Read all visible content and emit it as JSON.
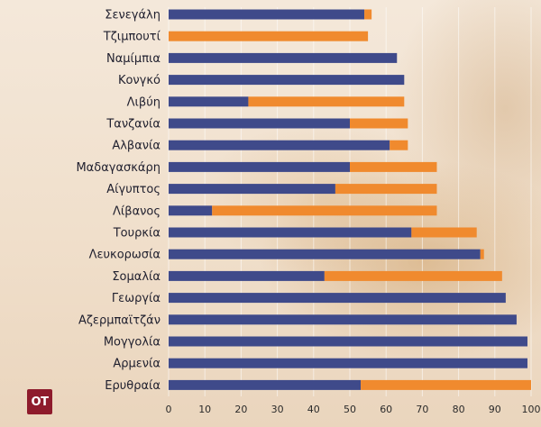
{
  "chart_data": {
    "type": "bar",
    "orientation": "horizontal",
    "stacked": true,
    "categories": [
      "Σενεγάλη",
      "Τζιμπουτί",
      "Ναμίμπια",
      "Κονγκό",
      "Λιβύη",
      "Τανζανία",
      "Αλβανία",
      "Μαδαγασκάρη",
      "Αίγυπτος",
      "Λίβανος",
      "Τουρκία",
      "Λευκορωσία",
      "Σομαλία",
      "Γεωργία",
      "Αζερμπαϊτζάν",
      "Μογγολία",
      "Αρμενία",
      "Ερυθραία"
    ],
    "series": [
      {
        "color": "#3f4a8a",
        "values": [
          54,
          0,
          63,
          65,
          22,
          50,
          61,
          50,
          46,
          12,
          67,
          86,
          43,
          93,
          96,
          99,
          99,
          53
        ]
      },
      {
        "color": "#f08a2e",
        "values": [
          2,
          55,
          0,
          0,
          43,
          16,
          5,
          24,
          28,
          62,
          18,
          1,
          49,
          0,
          0,
          0,
          0,
          47
        ]
      }
    ],
    "xlim": [
      0,
      100
    ],
    "xticks": [
      0,
      10,
      20,
      30,
      40,
      50,
      60,
      70,
      80,
      90,
      100
    ],
    "grid": true
  },
  "logo": {
    "text": "OT"
  }
}
